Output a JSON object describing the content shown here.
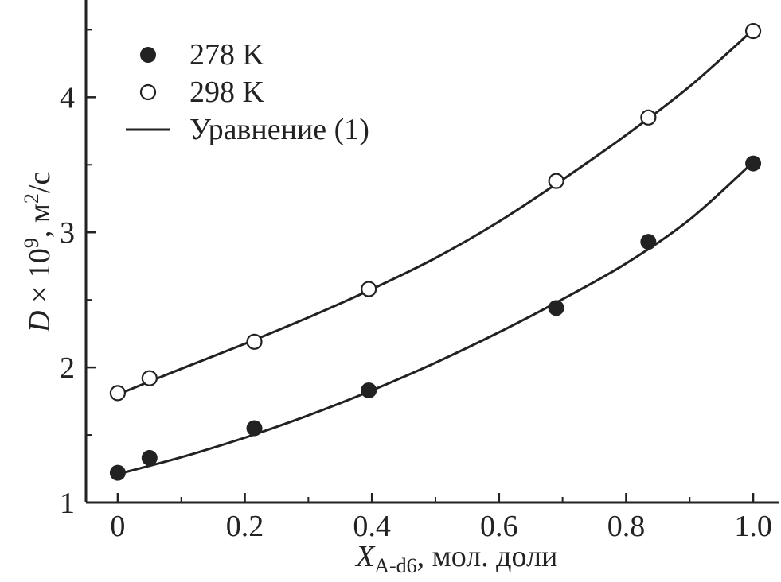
{
  "chart_data": {
    "type": "scatter",
    "x_ticks": [
      "0",
      "0.2",
      "0.4",
      "0.6",
      "0.8",
      "1.0"
    ],
    "y_ticks": [
      "1",
      "2",
      "3",
      "4"
    ],
    "xlim": [
      -0.05,
      1.04
    ],
    "ylim": [
      1.0,
      4.72
    ],
    "xlabel": {
      "main": "X",
      "sub": "A-d6",
      "rest": ", мол. доли"
    },
    "ylabel": {
      "pre": "D",
      "mid": " × 10",
      "sup": "9",
      "post": ", м",
      "sup2": "2",
      "end": "/с"
    },
    "legend": {
      "items": [
        {
          "marker": "filled-circle",
          "label": "278 K"
        },
        {
          "marker": "open-circle",
          "label": "298 K"
        },
        {
          "marker": "line",
          "label": "Уравнение (1)"
        }
      ]
    },
    "series": [
      {
        "name": "278 K",
        "marker": "filled",
        "x": [
          0.0,
          0.05,
          0.215,
          0.395,
          0.69,
          0.835,
          1.0
        ],
        "y": [
          1.22,
          1.33,
          1.55,
          1.83,
          2.44,
          2.93,
          3.51
        ],
        "fit": [
          [
            0.0,
            1.21
          ],
          [
            0.1,
            1.335
          ],
          [
            0.2,
            1.48
          ],
          [
            0.3,
            1.645
          ],
          [
            0.4,
            1.83
          ],
          [
            0.5,
            2.035
          ],
          [
            0.6,
            2.26
          ],
          [
            0.7,
            2.505
          ],
          [
            0.8,
            2.77
          ],
          [
            0.9,
            3.095
          ],
          [
            1.0,
            3.52
          ]
        ]
      },
      {
        "name": "298 K",
        "marker": "open",
        "x": [
          0.0,
          0.05,
          0.215,
          0.395,
          0.69,
          0.835,
          1.0
        ],
        "y": [
          1.81,
          1.92,
          2.19,
          2.58,
          3.38,
          3.85,
          4.49
        ],
        "fit": [
          [
            0.0,
            1.8
          ],
          [
            0.1,
            1.99
          ],
          [
            0.2,
            2.175
          ],
          [
            0.3,
            2.37
          ],
          [
            0.4,
            2.58
          ],
          [
            0.5,
            2.81
          ],
          [
            0.6,
            3.08
          ],
          [
            0.7,
            3.39
          ],
          [
            0.8,
            3.72
          ],
          [
            0.9,
            4.08
          ],
          [
            1.0,
            4.5
          ]
        ]
      }
    ],
    "colors": {
      "ink": "#222222",
      "background": "#ffffff"
    }
  }
}
